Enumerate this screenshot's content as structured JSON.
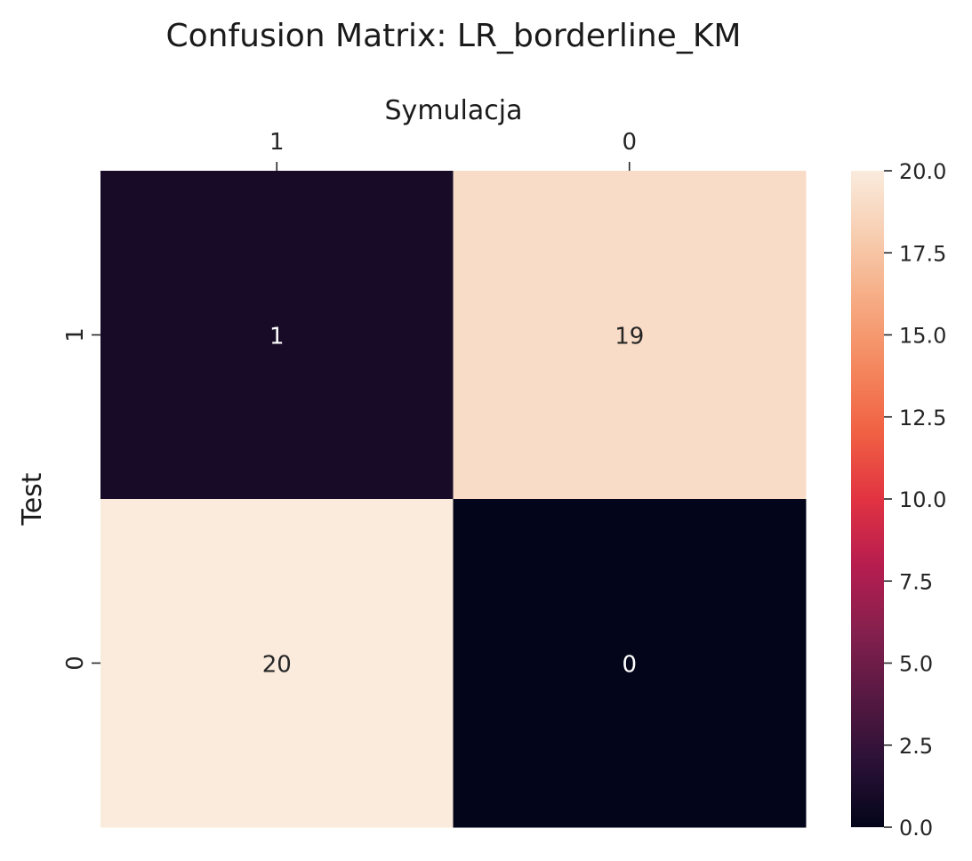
{
  "chart_data": {
    "type": "heatmap",
    "title": "Confusion Matrix: LR_borderline_KM",
    "xlabel": "Symulacja",
    "ylabel": "Test",
    "x_categories": [
      "1",
      "0"
    ],
    "y_categories": [
      "1",
      "0"
    ],
    "values": [
      [
        1,
        19
      ],
      [
        20,
        0
      ]
    ],
    "colorbar": {
      "min": 0.0,
      "max": 20.0,
      "ticks": [
        "0.0",
        "2.5",
        "5.0",
        "7.5",
        "10.0",
        "12.5",
        "15.0",
        "17.5",
        "20.0"
      ],
      "colormap": "rocket",
      "stops": [
        "#03051a",
        "#2b1136",
        "#571942",
        "#86204e",
        "#b71d4f",
        "#e13342",
        "#f06043",
        "#f4875e",
        "#f6aa82",
        "#f7cdb0",
        "#faebdd"
      ]
    },
    "grid": false,
    "legend": "colorbar-right"
  }
}
